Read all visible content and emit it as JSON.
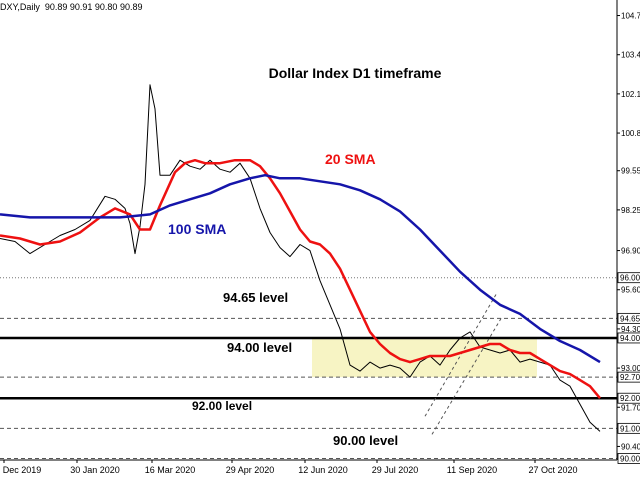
{
  "header": {
    "symbol": "DXY,Daily",
    "ohlc": "90.89 90.91 90.80 90.89"
  },
  "chart_data": {
    "type": "line",
    "title": "Dollar Index D1 timeframe",
    "xlabel": "",
    "ylabel": "",
    "ylim": [
      89.95,
      104.95
    ],
    "grid": false,
    "price_ticks": [
      104.7,
      103.4,
      102.1,
      100.8,
      99.55,
      98.25,
      96.9,
      95.6,
      94.3,
      93.0,
      91.7,
      90.4
    ],
    "highlighted_prices": [
      {
        "label": "96.00",
        "value": 96.0,
        "style": "dotted"
      },
      {
        "label": "94.65",
        "value": 94.65,
        "style": "dashed"
      },
      {
        "label": "94.00",
        "value": 94.0,
        "style": "thick"
      },
      {
        "label": "92.70",
        "value": 92.7,
        "style": "dashed"
      },
      {
        "label": "92.00",
        "value": 92.0,
        "style": "thick"
      },
      {
        "label": "91.00",
        "value": 91.0,
        "style": "dashed"
      },
      {
        "label": "90.00",
        "value": 90.0,
        "style": "dashed"
      }
    ],
    "time_labels": [
      "Dec 2019",
      "30 Jan 2020",
      "16 Mar 2020",
      "29 Apr 2020",
      "12 Jun 2020",
      "29 Jul 2020",
      "11 Sep 2020",
      "27 Oct 2020"
    ],
    "series": [
      {
        "name": "DXY",
        "color": "#000000",
        "x": [
          0,
          15,
          30,
          45,
          60,
          75,
          90,
          105,
          115,
          125,
          130,
          135,
          140,
          145,
          150,
          155,
          160,
          170,
          180,
          190,
          200,
          210,
          220,
          230,
          240,
          250,
          260,
          270,
          280,
          290,
          300,
          310,
          320,
          330,
          340,
          350,
          360,
          370,
          380,
          390,
          400,
          410,
          420,
          430,
          440,
          450,
          460,
          470,
          480,
          490,
          500,
          510,
          520,
          530,
          540,
          550,
          560,
          570,
          580,
          590,
          600
        ],
        "values": [
          97.3,
          97.2,
          96.8,
          97.1,
          97.4,
          97.6,
          97.9,
          98.7,
          98.6,
          98.3,
          97.8,
          96.8,
          97.7,
          99.1,
          102.4,
          101.6,
          99.4,
          99.4,
          99.9,
          99.7,
          99.6,
          99.9,
          99.6,
          99.5,
          99.8,
          99.3,
          98.3,
          97.5,
          97.0,
          96.7,
          97.1,
          96.9,
          95.9,
          95.1,
          94.3,
          93.1,
          92.9,
          93.2,
          93.0,
          93.1,
          93.0,
          92.7,
          93.2,
          93.4,
          93.1,
          93.6,
          94.0,
          94.2,
          93.7,
          93.6,
          93.5,
          93.6,
          93.2,
          93.3,
          93.2,
          93.1,
          92.6,
          92.4,
          91.8,
          91.2,
          90.9
        ]
      },
      {
        "name": "20 SMA",
        "color": "#ee1111",
        "x": [
          0,
          20,
          40,
          60,
          80,
          100,
          115,
          130,
          140,
          150,
          160,
          175,
          185,
          195,
          205,
          220,
          235,
          250,
          260,
          270,
          280,
          290,
          300,
          310,
          320,
          330,
          340,
          350,
          360,
          370,
          380,
          390,
          400,
          410,
          420,
          430,
          440,
          450,
          460,
          470,
          480,
          490,
          500,
          510,
          520,
          530,
          540,
          550,
          560,
          570,
          580,
          590,
          600
        ],
        "values": [
          97.4,
          97.3,
          97.1,
          97.2,
          97.5,
          98.0,
          98.3,
          98.1,
          97.6,
          97.6,
          98.4,
          99.5,
          99.8,
          99.9,
          99.8,
          99.8,
          99.9,
          99.9,
          99.7,
          99.3,
          98.8,
          98.2,
          97.6,
          97.2,
          97.1,
          96.8,
          96.3,
          95.6,
          94.9,
          94.2,
          93.8,
          93.5,
          93.3,
          93.2,
          93.3,
          93.4,
          93.4,
          93.4,
          93.5,
          93.6,
          93.7,
          93.8,
          93.8,
          93.6,
          93.5,
          93.5,
          93.3,
          93.1,
          92.9,
          92.8,
          92.6,
          92.4,
          92.0
        ]
      },
      {
        "name": "100 SMA",
        "color": "#1515aa",
        "x": [
          0,
          30,
          60,
          90,
          120,
          150,
          170,
          190,
          210,
          230,
          250,
          265,
          280,
          300,
          320,
          340,
          360,
          380,
          400,
          420,
          440,
          460,
          480,
          500,
          520,
          540,
          560,
          580,
          600
        ],
        "values": [
          98.1,
          98.0,
          98.0,
          98.0,
          98.0,
          98.1,
          98.4,
          98.6,
          98.8,
          99.1,
          99.3,
          99.4,
          99.3,
          99.3,
          99.2,
          99.1,
          98.9,
          98.6,
          98.2,
          97.6,
          96.9,
          96.2,
          95.6,
          95.1,
          94.8,
          94.3,
          93.9,
          93.6,
          93.2
        ]
      }
    ],
    "annotations": [
      {
        "text": "20 SMA",
        "color": "#ee1111"
      },
      {
        "text": "100 SMA",
        "color": "#1515aa"
      },
      {
        "text": "94.65 level",
        "color": "#000000"
      },
      {
        "text": "94.00 level",
        "color": "#000000"
      },
      {
        "text": "92.00 level",
        "color": "#000000"
      },
      {
        "text": "90.00 level",
        "color": "#000000"
      }
    ],
    "zone": {
      "from": 92.7,
      "to": 94.0,
      "color": "#f7f4c4"
    }
  }
}
